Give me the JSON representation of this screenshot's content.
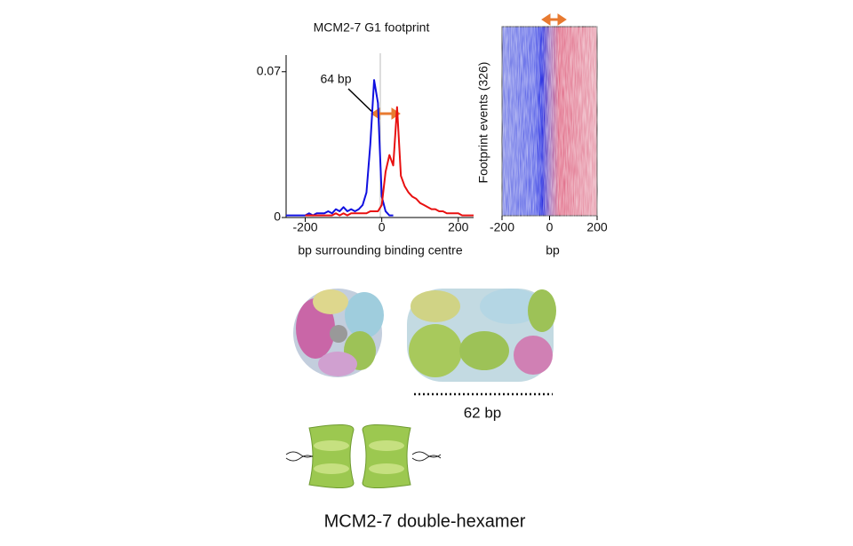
{
  "chart_data": [
    {
      "type": "line",
      "title": "MCM2-7 G1 footprint",
      "xlabel": "bp surrounding binding centre",
      "annotation": "64 bp",
      "x": [
        -250,
        -240,
        -230,
        -220,
        -210,
        -200,
        -190,
        -180,
        -170,
        -160,
        -150,
        -140,
        -130,
        -120,
        -110,
        -100,
        -90,
        -80,
        -70,
        -60,
        -50,
        -40,
        -30,
        -20,
        -10,
        0,
        10,
        20,
        30,
        40,
        50,
        60,
        70,
        80,
        90,
        100,
        110,
        120,
        130,
        140,
        150,
        160,
        170,
        180,
        190,
        200,
        210,
        220,
        230,
        240
      ],
      "series": [
        {
          "color": "#1010e0",
          "values": [
            0.001,
            0.001,
            0.001,
            0.001,
            0.001,
            0.001,
            0.002,
            0.001,
            0.002,
            0.002,
            0.002,
            0.003,
            0.002,
            0.004,
            0.003,
            0.005,
            0.003,
            0.004,
            0.003,
            0.004,
            0.006,
            0.012,
            0.035,
            0.066,
            0.055,
            0.01,
            0.003,
            0.001,
            0.001,
            null,
            null,
            null,
            null,
            null,
            null,
            null,
            null,
            null,
            null,
            null,
            null,
            null,
            null,
            null,
            null,
            null,
            null,
            null,
            null,
            null
          ]
        },
        {
          "color": "#e81010",
          "values": [
            null,
            null,
            null,
            null,
            null,
            0.001,
            0.001,
            0.001,
            0.001,
            0.001,
            0.001,
            0.001,
            0.001,
            0.002,
            0.001,
            0.002,
            0.001,
            0.002,
            0.002,
            0.002,
            0.002,
            0.002,
            0.003,
            0.003,
            0.003,
            0.006,
            0.022,
            0.03,
            0.025,
            0.053,
            0.02,
            0.015,
            0.012,
            0.01,
            0.009,
            0.007,
            0.006,
            0.005,
            0.004,
            0.004,
            0.003,
            0.003,
            0.002,
            0.002,
            0.002,
            0.002,
            0.001,
            0.001,
            0.001,
            0.001
          ]
        }
      ],
      "xlim": [
        -250,
        240
      ],
      "xticks": [
        -200,
        0,
        200
      ],
      "ylim": [
        0,
        0.078
      ],
      "yticks": [
        0,
        0.07
      ]
    },
    {
      "type": "heatmap",
      "xlabel": "bp",
      "ylabel": "Footprint events (326)",
      "xlim": [
        -200,
        200
      ],
      "xticks": [
        -200,
        0,
        200
      ]
    }
  ],
  "figure": {
    "structure_label": "62 bp",
    "caption": "MCM2-7  double-hexamer"
  }
}
